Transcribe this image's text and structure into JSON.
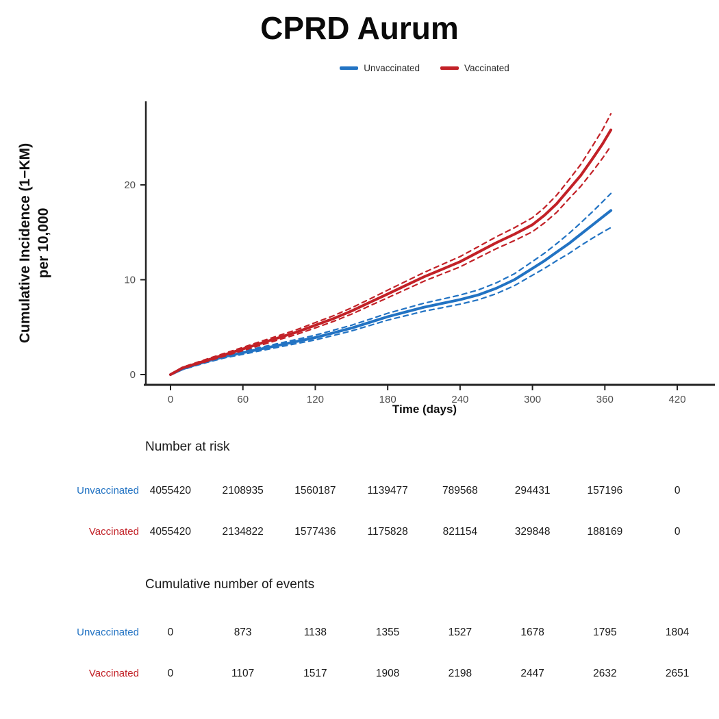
{
  "title": "CPRD Aurum",
  "legend": {
    "items": [
      {
        "label": "Unvaccinated",
        "color": "#2273c3"
      },
      {
        "label": "Vaccinated",
        "color": "#c22127"
      }
    ]
  },
  "axis": {
    "x_label": "Time (days)",
    "y_label_line1": "Cumulative Incidence (1−KM)",
    "y_label_line2": "per 10,000"
  },
  "chart_data": {
    "type": "line",
    "title": "CPRD Aurum",
    "xlabel": "Time (days)",
    "ylabel": "Cumulative Incidence (1-KM) per 10,000",
    "x_ticks": [
      0,
      60,
      120,
      180,
      240,
      300,
      360,
      420
    ],
    "y_ticks": [
      0,
      10,
      20
    ],
    "xlim": [
      0,
      450
    ],
    "ylim": [
      0,
      28
    ],
    "grid": false,
    "legend_position": "top",
    "ci_style": "dashed",
    "x": [
      0,
      10,
      20,
      30,
      45,
      60,
      75,
      90,
      105,
      120,
      135,
      150,
      165,
      180,
      195,
      210,
      225,
      240,
      255,
      270,
      285,
      300,
      310,
      320,
      330,
      340,
      350,
      358,
      365
    ],
    "series": [
      {
        "name": "Unvaccinated",
        "color": "#2273c3",
        "values": [
          0,
          0.6,
          1.0,
          1.4,
          1.9,
          2.3,
          2.7,
          3.1,
          3.5,
          3.9,
          4.4,
          4.9,
          5.5,
          6.1,
          6.6,
          7.1,
          7.5,
          7.9,
          8.4,
          9.1,
          10.0,
          11.2,
          12.0,
          12.9,
          13.8,
          14.8,
          15.8,
          16.6,
          17.3
        ],
        "ci_halfwidth": [
          0.05,
          0.08,
          0.1,
          0.12,
          0.14,
          0.16,
          0.18,
          0.2,
          0.22,
          0.25,
          0.28,
          0.3,
          0.33,
          0.36,
          0.39,
          0.42,
          0.45,
          0.48,
          0.52,
          0.57,
          0.63,
          0.72,
          0.8,
          0.9,
          1.05,
          1.2,
          1.4,
          1.6,
          1.8
        ]
      },
      {
        "name": "Vaccinated",
        "color": "#c22127",
        "values": [
          0,
          0.7,
          1.1,
          1.5,
          2.1,
          2.7,
          3.3,
          3.9,
          4.5,
          5.2,
          5.9,
          6.7,
          7.6,
          8.5,
          9.4,
          10.3,
          11.1,
          11.9,
          12.9,
          13.9,
          14.8,
          15.8,
          16.8,
          18.0,
          19.5,
          21.0,
          22.8,
          24.3,
          25.8
        ],
        "ci_halfwidth": [
          0.05,
          0.08,
          0.1,
          0.13,
          0.15,
          0.17,
          0.2,
          0.22,
          0.25,
          0.28,
          0.3,
          0.33,
          0.36,
          0.4,
          0.43,
          0.46,
          0.5,
          0.54,
          0.58,
          0.63,
          0.68,
          0.74,
          0.8,
          0.9,
          1.0,
          1.15,
          1.35,
          1.5,
          1.7
        ]
      }
    ]
  },
  "risk_table": {
    "title": "Number at risk",
    "columns": [
      "0",
      "60",
      "120",
      "180",
      "240",
      "300",
      "360",
      "420"
    ],
    "rows": [
      {
        "label": "Unvaccinated",
        "color": "#2273c3",
        "values": [
          "4055420",
          "2108935",
          "1560187",
          "1139477",
          "789568",
          "294431",
          "157196",
          "0"
        ]
      },
      {
        "label": "Vaccinated",
        "color": "#c22127",
        "values": [
          "4055420",
          "2134822",
          "1577436",
          "1175828",
          "821154",
          "329848",
          "188169",
          "0"
        ]
      }
    ]
  },
  "events_table": {
    "title": "Cumulative number of events",
    "rows": [
      {
        "label": "Unvaccinated",
        "color": "#2273c3",
        "values": [
          "0",
          "873",
          "1138",
          "1355",
          "1527",
          "1678",
          "1795",
          "1804"
        ]
      },
      {
        "label": "Vaccinated",
        "color": "#c22127",
        "values": [
          "0",
          "1107",
          "1517",
          "1908",
          "2198",
          "2447",
          "2632",
          "2651"
        ]
      }
    ]
  }
}
